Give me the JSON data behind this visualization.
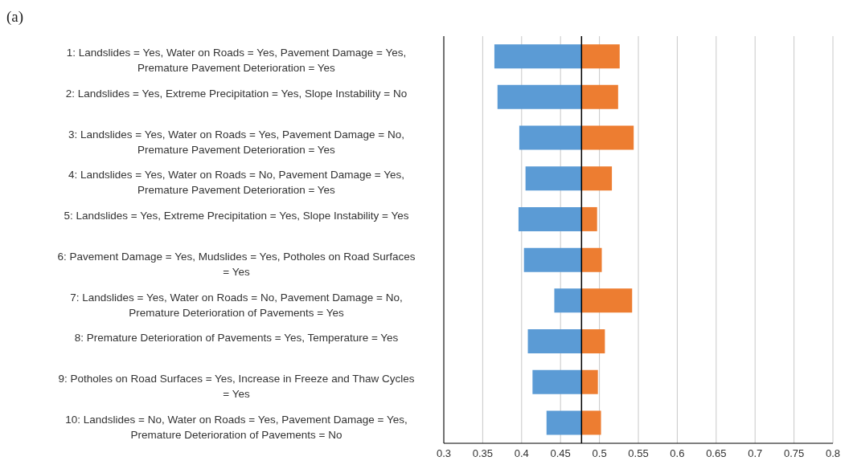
{
  "chart_data": {
    "type": "bar",
    "orientation": "horizontal",
    "title": "(a)",
    "categories": [
      "1: Landslides = Yes, Water on Roads = Yes, Pavement Damage = Yes, Premature Pavement Deterioration = Yes",
      "2: Landslides = Yes, Extreme Precipitation = Yes, Slope Instability = No",
      "3: Landslides = Yes, Water on Roads = Yes, Pavement Damage = No, Premature Pavement Deterioration = Yes",
      "4: Landslides = Yes, Water on Roads = No, Pavement Damage = Yes, Premature Pavement Deterioration = Yes",
      "5: Landslides = Yes, Extreme Precipitation = Yes, Slope Instability = Yes",
      "6: Pavement Damage = Yes, Mudslides = Yes, Potholes on Road Surfaces = Yes",
      "7: Landslides = Yes, Water on Roads = No, Pavement Damage = No, Premature Deterioration of Pavements = Yes",
      "8: Premature Deterioration of Pavements = Yes, Temperature = Yes",
      "9: Potholes on Road Surfaces = Yes, Increase in Freeze and Thaw Cycles = Yes",
      "10: Landslides = No, Water on Roads = Yes, Pavement Damage = Yes, Premature Deterioration of Pavements = No"
    ],
    "series": [
      {
        "color": "#5b9bd5",
        "base": [
          0.365,
          0.369,
          0.397,
          0.405,
          0.396,
          0.403,
          0.442,
          0.408,
          0.414,
          0.432
        ],
        "values": [
          0.112,
          0.108,
          0.08,
          0.072,
          0.081,
          0.074,
          0.035,
          0.069,
          0.063,
          0.045
        ]
      },
      {
        "color": "#ed7d31",
        "base": [
          0.477,
          0.477,
          0.477,
          0.477,
          0.477,
          0.477,
          0.477,
          0.477,
          0.477,
          0.477
        ],
        "values": [
          0.049,
          0.047,
          0.067,
          0.039,
          0.02,
          0.026,
          0.065,
          0.03,
          0.021,
          0.025
        ]
      }
    ],
    "xlim": [
      0.3,
      0.8
    ],
    "xticks": [
      0.3,
      0.35,
      0.4,
      0.45,
      0.5,
      0.55,
      0.6,
      0.65,
      0.7,
      0.75,
      0.8
    ],
    "grid": "x",
    "ref_lines": [
      {
        "axis": "x",
        "value": 0.477,
        "color": "#000000"
      }
    ]
  }
}
